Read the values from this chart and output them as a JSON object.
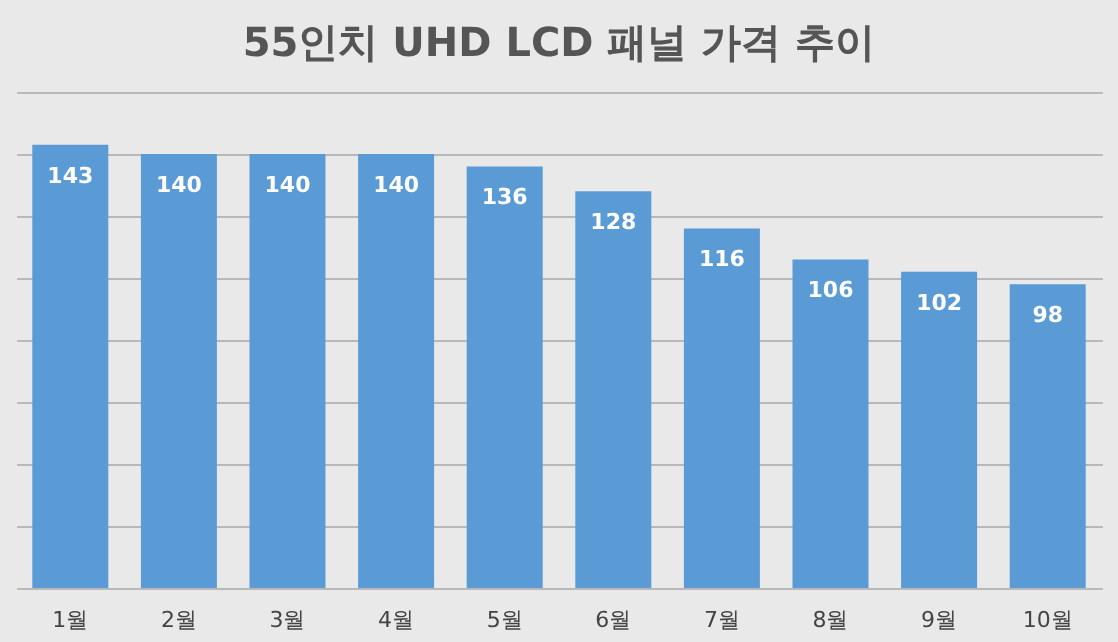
{
  "chart_data": {
    "type": "bar",
    "title": "55인치 UHD LCD 패널 가격 추이",
    "categories": [
      "1월",
      "2월",
      "3월",
      "4월",
      "5월",
      "6월",
      "7월",
      "8월",
      "9월",
      "10월"
    ],
    "values": [
      143,
      140,
      140,
      140,
      136,
      128,
      116,
      106,
      102,
      98
    ],
    "color": "#5b9bd5",
    "ylim": [
      0,
      160
    ],
    "grid": "y",
    "tick_labels": "x",
    "data_labels": true
  }
}
